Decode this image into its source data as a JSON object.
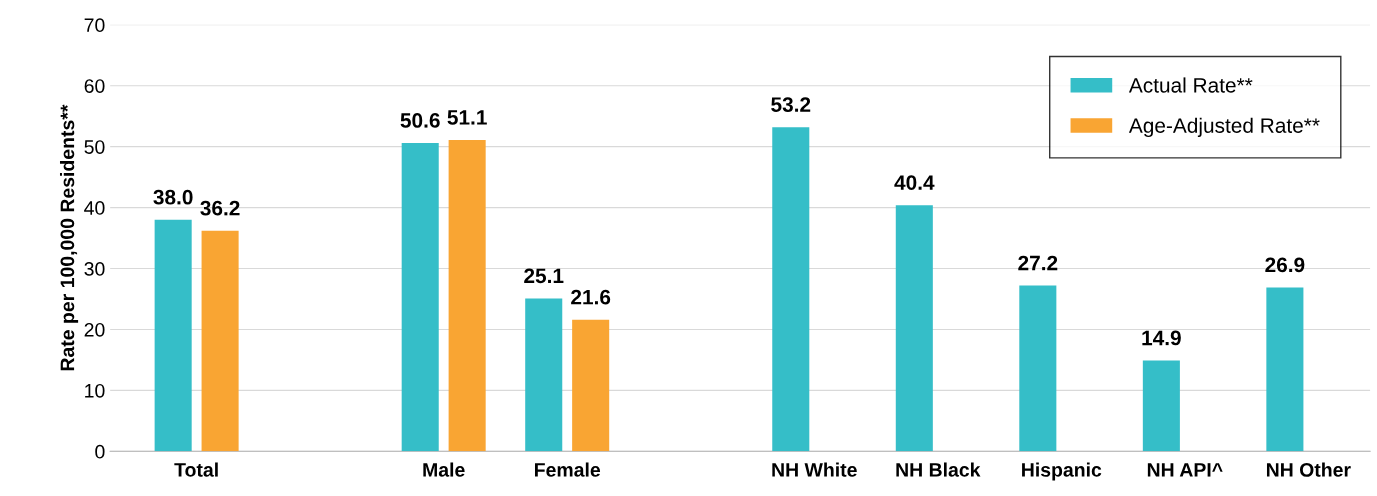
{
  "chart_data": {
    "type": "bar",
    "ylabel": "Rate per 100,000 Residents**",
    "categories": [
      "Total",
      null,
      "Male",
      "Female",
      null,
      "NH White",
      "NH Black",
      "Hispanic",
      "NH API^",
      "NH Other"
    ],
    "series": [
      {
        "name": "Actual Rate**",
        "color": "#35bec8",
        "values": [
          38.0,
          null,
          50.6,
          25.1,
          null,
          53.2,
          40.4,
          27.2,
          14.9,
          26.9
        ],
        "value_labels": [
          "38.0",
          null,
          "50.6",
          "25.1",
          null,
          "53.2",
          "40.4",
          "27.2",
          "14.9",
          "26.9"
        ]
      },
      {
        "name": "Age-Adjusted Rate**",
        "color": "#f9a533",
        "values": [
          36.2,
          null,
          51.1,
          21.6,
          null,
          null,
          null,
          null,
          null,
          null
        ],
        "value_labels": [
          "36.2",
          null,
          "51.1",
          "21.6",
          null,
          null,
          null,
          null,
          null,
          null
        ]
      }
    ],
    "ylim": [
      0,
      70
    ],
    "yticks": [
      0,
      10,
      20,
      30,
      40,
      50,
      60,
      70
    ],
    "grid": "y",
    "legend": "top right"
  }
}
